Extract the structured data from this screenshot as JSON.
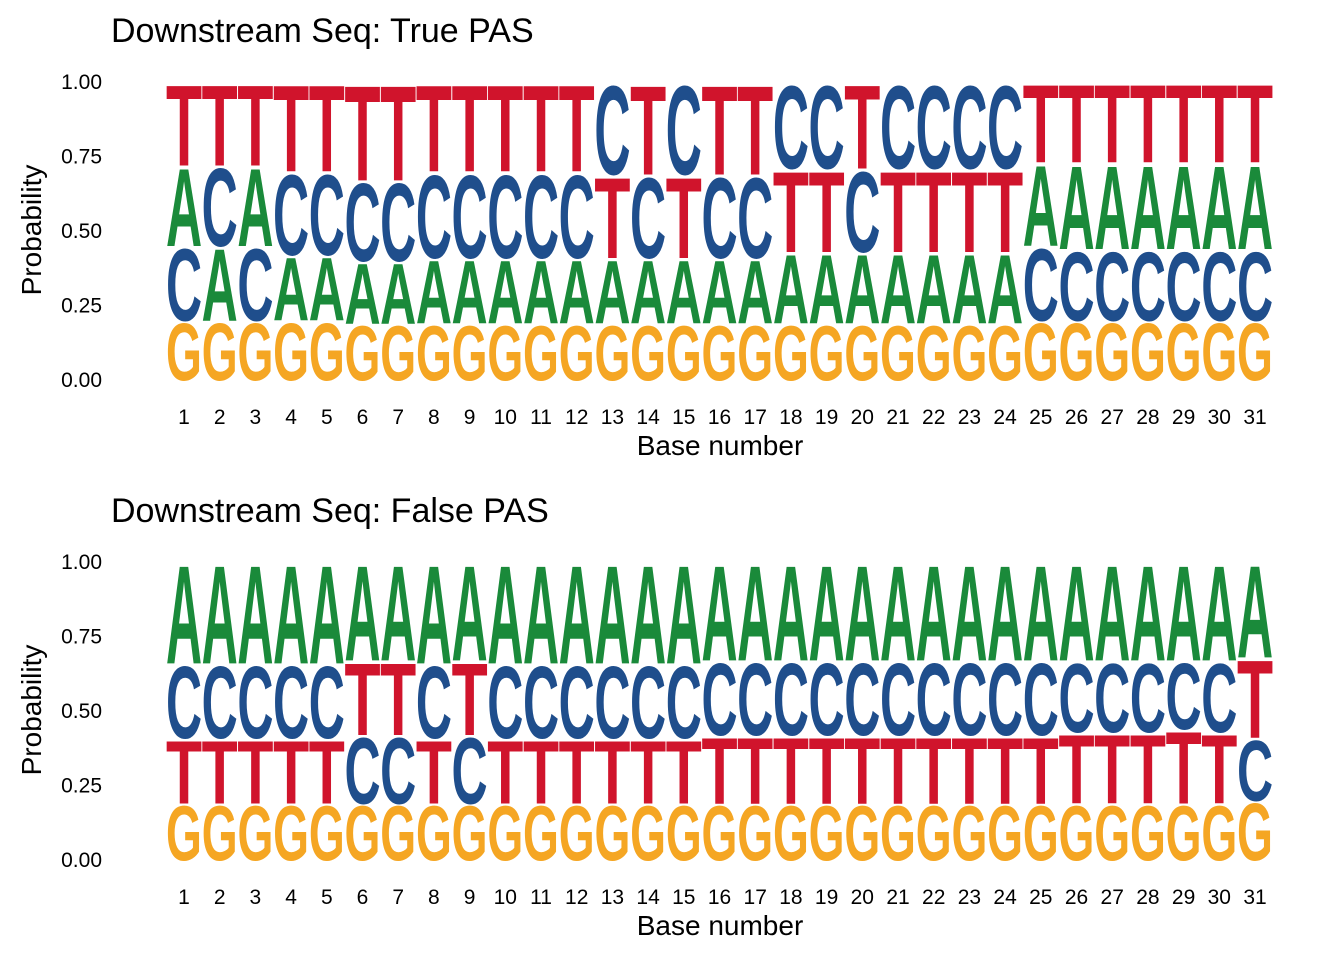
{
  "colors": {
    "A": "#1a8a3a",
    "C": "#1f4e8c",
    "G": "#f5a623",
    "T": "#d0142c"
  },
  "chart_data": [
    {
      "type": "sequence-logo",
      "title": "Downstream Seq: True PAS",
      "xlabel": "Base number",
      "ylabel": "Probability",
      "ylim": [
        0,
        1
      ],
      "yticks": [
        "0.00",
        "0.25",
        "0.50",
        "0.75",
        "1.00"
      ],
      "x": [
        1,
        2,
        3,
        4,
        5,
        6,
        7,
        8,
        9,
        10,
        11,
        12,
        13,
        14,
        15,
        16,
        17,
        18,
        19,
        20,
        21,
        22,
        23,
        24,
        25,
        26,
        27,
        28,
        29,
        30,
        31
      ],
      "stacks": [
        [
          [
            "G",
            0.2
          ],
          [
            "C",
            0.25
          ],
          [
            "A",
            0.27
          ],
          [
            "T",
            0.28
          ]
        ],
        [
          [
            "G",
            0.2
          ],
          [
            "A",
            0.25
          ],
          [
            "C",
            0.27
          ],
          [
            "T",
            0.28
          ]
        ],
        [
          [
            "G",
            0.2
          ],
          [
            "C",
            0.25
          ],
          [
            "A",
            0.27
          ],
          [
            "T",
            0.28
          ]
        ],
        [
          [
            "G",
            0.2
          ],
          [
            "A",
            0.22
          ],
          [
            "C",
            0.28
          ],
          [
            "T",
            0.3
          ]
        ],
        [
          [
            "G",
            0.2
          ],
          [
            "A",
            0.22
          ],
          [
            "C",
            0.28
          ],
          [
            "T",
            0.3
          ]
        ],
        [
          [
            "G",
            0.19
          ],
          [
            "A",
            0.21
          ],
          [
            "C",
            0.27
          ],
          [
            "T",
            0.33
          ]
        ],
        [
          [
            "G",
            0.19
          ],
          [
            "A",
            0.21
          ],
          [
            "C",
            0.27
          ],
          [
            "T",
            0.33
          ]
        ],
        [
          [
            "G",
            0.19
          ],
          [
            "A",
            0.22
          ],
          [
            "C",
            0.29
          ],
          [
            "T",
            0.3
          ]
        ],
        [
          [
            "G",
            0.19
          ],
          [
            "A",
            0.22
          ],
          [
            "C",
            0.29
          ],
          [
            "T",
            0.3
          ]
        ],
        [
          [
            "G",
            0.19
          ],
          [
            "A",
            0.22
          ],
          [
            "C",
            0.29
          ],
          [
            "T",
            0.3
          ]
        ],
        [
          [
            "G",
            0.19
          ],
          [
            "A",
            0.22
          ],
          [
            "C",
            0.29
          ],
          [
            "T",
            0.3
          ]
        ],
        [
          [
            "G",
            0.19
          ],
          [
            "A",
            0.22
          ],
          [
            "C",
            0.29
          ],
          [
            "T",
            0.3
          ]
        ],
        [
          [
            "G",
            0.19
          ],
          [
            "A",
            0.22
          ],
          [
            "T",
            0.28
          ],
          [
            "C",
            0.31
          ]
        ],
        [
          [
            "G",
            0.19
          ],
          [
            "A",
            0.22
          ],
          [
            "C",
            0.28
          ],
          [
            "T",
            0.31
          ]
        ],
        [
          [
            "G",
            0.19
          ],
          [
            "A",
            0.22
          ],
          [
            "T",
            0.28
          ],
          [
            "C",
            0.31
          ]
        ],
        [
          [
            "G",
            0.19
          ],
          [
            "A",
            0.22
          ],
          [
            "C",
            0.28
          ],
          [
            "T",
            0.31
          ]
        ],
        [
          [
            "G",
            0.19
          ],
          [
            "A",
            0.22
          ],
          [
            "C",
            0.28
          ],
          [
            "T",
            0.31
          ]
        ],
        [
          [
            "G",
            0.19
          ],
          [
            "A",
            0.24
          ],
          [
            "T",
            0.28
          ],
          [
            "C",
            0.29
          ]
        ],
        [
          [
            "G",
            0.19
          ],
          [
            "A",
            0.24
          ],
          [
            "T",
            0.28
          ],
          [
            "C",
            0.29
          ]
        ],
        [
          [
            "G",
            0.19
          ],
          [
            "A",
            0.24
          ],
          [
            "C",
            0.28
          ],
          [
            "T",
            0.29
          ]
        ],
        [
          [
            "G",
            0.19
          ],
          [
            "A",
            0.24
          ],
          [
            "T",
            0.28
          ],
          [
            "C",
            0.29
          ]
        ],
        [
          [
            "G",
            0.19
          ],
          [
            "A",
            0.24
          ],
          [
            "T",
            0.28
          ],
          [
            "C",
            0.29
          ]
        ],
        [
          [
            "G",
            0.19
          ],
          [
            "A",
            0.24
          ],
          [
            "T",
            0.28
          ],
          [
            "C",
            0.29
          ]
        ],
        [
          [
            "G",
            0.19
          ],
          [
            "A",
            0.24
          ],
          [
            "T",
            0.28
          ],
          [
            "C",
            0.29
          ]
        ],
        [
          [
            "G",
            0.2
          ],
          [
            "C",
            0.25
          ],
          [
            "A",
            0.28
          ],
          [
            "T",
            0.27
          ]
        ],
        [
          [
            "G",
            0.2
          ],
          [
            "C",
            0.24
          ],
          [
            "A",
            0.29
          ],
          [
            "T",
            0.27
          ]
        ],
        [
          [
            "G",
            0.2
          ],
          [
            "C",
            0.24
          ],
          [
            "A",
            0.29
          ],
          [
            "T",
            0.27
          ]
        ],
        [
          [
            "G",
            0.2
          ],
          [
            "C",
            0.24
          ],
          [
            "A",
            0.29
          ],
          [
            "T",
            0.27
          ]
        ],
        [
          [
            "G",
            0.2
          ],
          [
            "C",
            0.24
          ],
          [
            "A",
            0.29
          ],
          [
            "T",
            0.27
          ]
        ],
        [
          [
            "G",
            0.2
          ],
          [
            "C",
            0.24
          ],
          [
            "A",
            0.29
          ],
          [
            "T",
            0.27
          ]
        ],
        [
          [
            "G",
            0.2
          ],
          [
            "C",
            0.24
          ],
          [
            "A",
            0.29
          ],
          [
            "T",
            0.27
          ]
        ]
      ]
    },
    {
      "type": "sequence-logo",
      "title": "Downstream Seq: False PAS",
      "xlabel": "Base number",
      "ylabel": "Probability",
      "ylim": [
        0,
        1
      ],
      "yticks": [
        "0.00",
        "0.25",
        "0.50",
        "0.75",
        "1.00"
      ],
      "x": [
        1,
        2,
        3,
        4,
        5,
        6,
        7,
        8,
        9,
        10,
        11,
        12,
        13,
        14,
        15,
        16,
        17,
        18,
        19,
        20,
        21,
        22,
        23,
        24,
        25,
        26,
        27,
        28,
        29,
        30,
        31
      ],
      "stacks": [
        [
          [
            "G",
            0.19
          ],
          [
            "T",
            0.22
          ],
          [
            "C",
            0.25
          ],
          [
            "A",
            0.34
          ]
        ],
        [
          [
            "G",
            0.19
          ],
          [
            "T",
            0.22
          ],
          [
            "C",
            0.25
          ],
          [
            "A",
            0.34
          ]
        ],
        [
          [
            "G",
            0.19
          ],
          [
            "T",
            0.22
          ],
          [
            "C",
            0.25
          ],
          [
            "A",
            0.34
          ]
        ],
        [
          [
            "G",
            0.19
          ],
          [
            "T",
            0.22
          ],
          [
            "C",
            0.25
          ],
          [
            "A",
            0.34
          ]
        ],
        [
          [
            "G",
            0.19
          ],
          [
            "T",
            0.22
          ],
          [
            "C",
            0.25
          ],
          [
            "A",
            0.34
          ]
        ],
        [
          [
            "G",
            0.19
          ],
          [
            "C",
            0.23
          ],
          [
            "T",
            0.25
          ],
          [
            "A",
            0.33
          ]
        ],
        [
          [
            "G",
            0.19
          ],
          [
            "C",
            0.23
          ],
          [
            "T",
            0.25
          ],
          [
            "A",
            0.33
          ]
        ],
        [
          [
            "G",
            0.19
          ],
          [
            "T",
            0.22
          ],
          [
            "C",
            0.25
          ],
          [
            "A",
            0.34
          ]
        ],
        [
          [
            "G",
            0.19
          ],
          [
            "C",
            0.23
          ],
          [
            "T",
            0.25
          ],
          [
            "A",
            0.33
          ]
        ],
        [
          [
            "G",
            0.19
          ],
          [
            "T",
            0.22
          ],
          [
            "C",
            0.25
          ],
          [
            "A",
            0.34
          ]
        ],
        [
          [
            "G",
            0.19
          ],
          [
            "T",
            0.22
          ],
          [
            "C",
            0.25
          ],
          [
            "A",
            0.34
          ]
        ],
        [
          [
            "G",
            0.19
          ],
          [
            "T",
            0.22
          ],
          [
            "C",
            0.25
          ],
          [
            "A",
            0.34
          ]
        ],
        [
          [
            "G",
            0.19
          ],
          [
            "T",
            0.22
          ],
          [
            "C",
            0.25
          ],
          [
            "A",
            0.34
          ]
        ],
        [
          [
            "G",
            0.19
          ],
          [
            "T",
            0.22
          ],
          [
            "C",
            0.25
          ],
          [
            "A",
            0.34
          ]
        ],
        [
          [
            "G",
            0.19
          ],
          [
            "T",
            0.22
          ],
          [
            "C",
            0.25
          ],
          [
            "A",
            0.34
          ]
        ],
        [
          [
            "G",
            0.19
          ],
          [
            "T",
            0.23
          ],
          [
            "C",
            0.25
          ],
          [
            "A",
            0.33
          ]
        ],
        [
          [
            "G",
            0.19
          ],
          [
            "T",
            0.23
          ],
          [
            "C",
            0.25
          ],
          [
            "A",
            0.33
          ]
        ],
        [
          [
            "G",
            0.19
          ],
          [
            "T",
            0.23
          ],
          [
            "C",
            0.25
          ],
          [
            "A",
            0.33
          ]
        ],
        [
          [
            "G",
            0.19
          ],
          [
            "T",
            0.23
          ],
          [
            "C",
            0.25
          ],
          [
            "A",
            0.33
          ]
        ],
        [
          [
            "G",
            0.19
          ],
          [
            "T",
            0.23
          ],
          [
            "C",
            0.25
          ],
          [
            "A",
            0.33
          ]
        ],
        [
          [
            "G",
            0.19
          ],
          [
            "T",
            0.23
          ],
          [
            "C",
            0.25
          ],
          [
            "A",
            0.33
          ]
        ],
        [
          [
            "G",
            0.19
          ],
          [
            "T",
            0.23
          ],
          [
            "C",
            0.25
          ],
          [
            "A",
            0.33
          ]
        ],
        [
          [
            "G",
            0.19
          ],
          [
            "T",
            0.23
          ],
          [
            "C",
            0.25
          ],
          [
            "A",
            0.33
          ]
        ],
        [
          [
            "G",
            0.19
          ],
          [
            "T",
            0.23
          ],
          [
            "C",
            0.25
          ],
          [
            "A",
            0.33
          ]
        ],
        [
          [
            "G",
            0.19
          ],
          [
            "T",
            0.23
          ],
          [
            "C",
            0.25
          ],
          [
            "A",
            0.33
          ]
        ],
        [
          [
            "G",
            0.19
          ],
          [
            "T",
            0.24
          ],
          [
            "C",
            0.24
          ],
          [
            "A",
            0.33
          ]
        ],
        [
          [
            "G",
            0.19
          ],
          [
            "T",
            0.24
          ],
          [
            "C",
            0.24
          ],
          [
            "A",
            0.33
          ]
        ],
        [
          [
            "G",
            0.19
          ],
          [
            "T",
            0.24
          ],
          [
            "C",
            0.24
          ],
          [
            "A",
            0.33
          ]
        ],
        [
          [
            "G",
            0.19
          ],
          [
            "T",
            0.25
          ],
          [
            "C",
            0.23
          ],
          [
            "A",
            0.33
          ]
        ],
        [
          [
            "G",
            0.19
          ],
          [
            "T",
            0.24
          ],
          [
            "C",
            0.24
          ],
          [
            "A",
            0.33
          ]
        ],
        [
          [
            "G",
            0.2
          ],
          [
            "C",
            0.21
          ],
          [
            "T",
            0.27
          ],
          [
            "A",
            0.32
          ]
        ]
      ]
    }
  ]
}
